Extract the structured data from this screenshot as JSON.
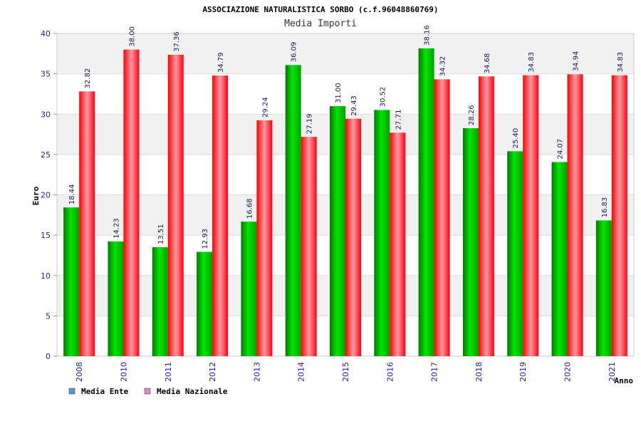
{
  "chart_data": {
    "type": "bar",
    "title": "ASSOCIAZIONE NATURALISTICA SORBO (c.f.96048860769)",
    "subtitle": "Media Importi",
    "xlabel": "Anno",
    "ylabel": "Euro",
    "ylim": [
      0,
      40
    ],
    "yticks": [
      "0",
      "5",
      "10",
      "15",
      "20",
      "25",
      "30",
      "35",
      "40"
    ],
    "categories": [
      "2008",
      "2010",
      "2011",
      "2012",
      "2013",
      "2014",
      "2015",
      "2016",
      "2017",
      "2018",
      "2019",
      "2020",
      "2021"
    ],
    "series": [
      {
        "name": "Media Ente",
        "color": "#00cc00",
        "values": [
          18.44,
          14.23,
          13.51,
          12.93,
          16.68,
          36.09,
          31.0,
          30.52,
          38.16,
          28.26,
          25.4,
          24.07,
          16.83
        ],
        "labels": [
          "18.44",
          "14.23",
          "13.51",
          "12.93",
          "16.68",
          "36.09",
          "31.00",
          "30.52",
          "38.16",
          "28.26",
          "25.40",
          "24.07",
          "16.83"
        ]
      },
      {
        "name": "Media Nazionale",
        "color": "#ff1a2a",
        "values": [
          32.82,
          38.0,
          37.36,
          34.79,
          29.24,
          27.19,
          29.43,
          27.71,
          34.32,
          34.68,
          34.83,
          34.94,
          34.83
        ],
        "labels": [
          "32.82",
          "38.00",
          "37.36",
          "34.79",
          "29.24",
          "27.19",
          "29.43",
          "27.71",
          "34.32",
          "34.68",
          "34.83",
          "34.94",
          "34.83"
        ]
      }
    ],
    "legend": {
      "position": "bottom-left",
      "items": [
        {
          "label": "Media Ente",
          "swatch_color": "#5b9bd5"
        },
        {
          "label": "Media Nazionale",
          "swatch_color": "#d98bbd"
        }
      ]
    },
    "grid": "horizontal-bands"
  }
}
